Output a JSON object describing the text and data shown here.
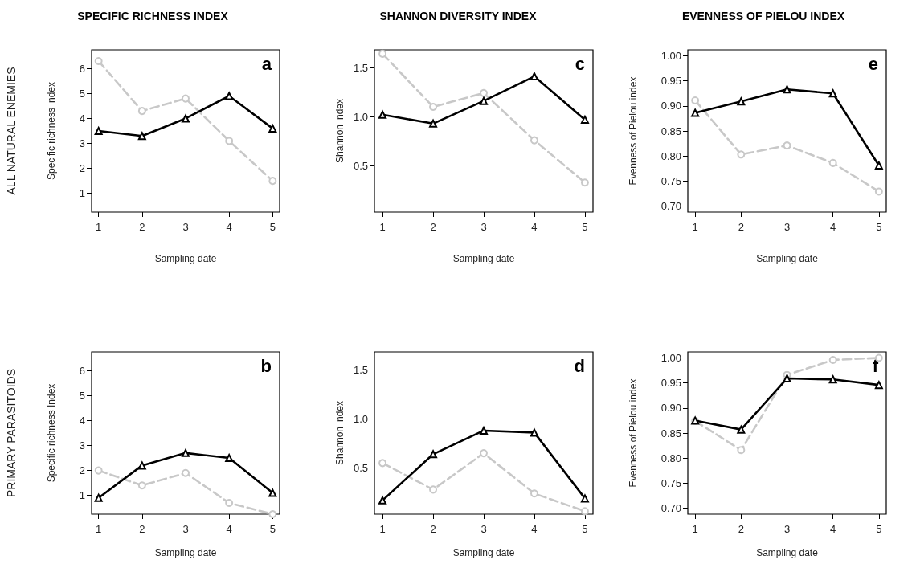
{
  "chart_data": [
    {
      "type": "line",
      "title": "SPECIFIC RICHNESS INDEX",
      "xlabel": "Sampling date",
      "ylabel": "Specific richness index",
      "annotations": [
        "a",
        "ALL NATURAL ENEMIES"
      ],
      "x": [
        1,
        2,
        3,
        4,
        5
      ],
      "xlim": [
        0.84,
        5.16
      ],
      "xticks": [
        1,
        2,
        3,
        4,
        5
      ],
      "ylim": [
        0.25,
        6.75
      ],
      "yticks": [
        1,
        2,
        3,
        4,
        5,
        6
      ],
      "grid": false,
      "series": [
        {
          "color": "#c8c8c8",
          "marker": "circle",
          "line_style": "dashed",
          "values": [
            6.3,
            4.3,
            4.8,
            3.1,
            1.5
          ]
        },
        {
          "color": "#000000",
          "marker": "triangle",
          "line_style": "solid",
          "values": [
            3.5,
            3.3,
            4.0,
            4.9,
            3.6
          ]
        }
      ]
    },
    {
      "type": "line",
      "title": "SHANNON DIVERSITY INDEX",
      "xlabel": "Sampling date",
      "ylabel": "Shannon index",
      "annotations": [
        "c"
      ],
      "x": [
        1,
        2,
        3,
        4,
        5
      ],
      "xlim": [
        0.84,
        5.16
      ],
      "xticks": [
        1,
        2,
        3,
        4,
        5
      ],
      "ylim": [
        0.03,
        1.68
      ],
      "yticks": [
        0.5,
        {
          "value": 1.0,
          "label": "1.0"
        },
        1.5
      ],
      "grid": false,
      "series": [
        {
          "color": "#c8c8c8",
          "marker": "circle",
          "line_style": "dashed",
          "values": [
            1.64,
            1.1,
            1.24,
            0.76,
            0.33
          ]
        },
        {
          "color": "#000000",
          "marker": "triangle",
          "line_style": "solid",
          "values": [
            1.02,
            0.93,
            1.16,
            1.41,
            0.97
          ]
        }
      ]
    },
    {
      "type": "line",
      "title": "EVENNESS OF PIELOU INDEX",
      "xlabel": "Sampling date",
      "ylabel": "Evenness of Pielou index",
      "annotations": [
        "e"
      ],
      "x": [
        1,
        2,
        3,
        4,
        5
      ],
      "xlim": [
        0.84,
        5.16
      ],
      "xticks": [
        1,
        2,
        3,
        4,
        5
      ],
      "ylim": [
        0.688,
        1.012
      ],
      "yticks": [
        {
          "value": 0.7,
          "label": "0.70"
        },
        0.75,
        {
          "value": 0.8,
          "label": "0.80"
        },
        0.85,
        {
          "value": 0.9,
          "label": "0.90"
        },
        0.95,
        {
          "value": 1.0,
          "label": "1.00"
        }
      ],
      "grid": false,
      "series": [
        {
          "color": "#c8c8c8",
          "marker": "circle",
          "line_style": "dashed",
          "values": [
            0.911,
            0.803,
            0.821,
            0.786,
            0.729
          ]
        },
        {
          "color": "#000000",
          "marker": "triangle",
          "line_style": "solid",
          "values": [
            0.886,
            0.909,
            0.933,
            0.925,
            0.781
          ]
        }
      ]
    },
    {
      "type": "line",
      "xlabel": "Sampling date",
      "ylabel": "Specific richness Index",
      "annotations": [
        "b",
        "PRIMARY PARASITOIDS"
      ],
      "x": [
        1,
        2,
        3,
        4,
        5
      ],
      "xlim": [
        0.84,
        5.16
      ],
      "xticks": [
        1,
        2,
        3,
        4,
        5
      ],
      "ylim": [
        0.25,
        6.75
      ],
      "yticks": [
        1,
        2,
        3,
        4,
        5,
        6
      ],
      "grid": false,
      "series": [
        {
          "color": "#c8c8c8",
          "marker": "circle",
          "line_style": "dashed",
          "values": [
            2.0,
            1.4,
            1.9,
            0.7,
            0.25
          ]
        },
        {
          "color": "#000000",
          "marker": "triangle",
          "line_style": "solid",
          "values": [
            0.9,
            2.2,
            2.7,
            2.5,
            1.1
          ]
        }
      ]
    },
    {
      "type": "line",
      "xlabel": "Sampling date",
      "ylabel": "Shannon index",
      "annotations": [
        "d"
      ],
      "x": [
        1,
        2,
        3,
        4,
        5
      ],
      "xlim": [
        0.84,
        5.16
      ],
      "xticks": [
        1,
        2,
        3,
        4,
        5
      ],
      "ylim": [
        0.03,
        1.68
      ],
      "yticks": [
        0.5,
        {
          "value": 1.0,
          "label": "1.0"
        },
        1.5
      ],
      "grid": false,
      "series": [
        {
          "color": "#c8c8c8",
          "marker": "circle",
          "line_style": "dashed",
          "values": [
            0.55,
            0.28,
            0.65,
            0.24,
            0.06
          ]
        },
        {
          "color": "#000000",
          "marker": "triangle",
          "line_style": "solid",
          "values": [
            0.17,
            0.64,
            0.88,
            0.86,
            0.19
          ]
        }
      ]
    },
    {
      "type": "line",
      "xlabel": "Sampling date",
      "ylabel": "Evenness of Pielou index",
      "annotations": [
        "f"
      ],
      "x": [
        1,
        2,
        3,
        4,
        5
      ],
      "xlim": [
        0.84,
        5.16
      ],
      "xticks": [
        1,
        2,
        3,
        4,
        5
      ],
      "ylim": [
        0.688,
        1.012
      ],
      "yticks": [
        {
          "value": 0.7,
          "label": "0.70"
        },
        0.75,
        {
          "value": 0.8,
          "label": "0.80"
        },
        0.85,
        {
          "value": 0.9,
          "label": "0.90"
        },
        0.95,
        {
          "value": 1.0,
          "label": "1.00"
        }
      ],
      "grid": false,
      "series": [
        {
          "color": "#c8c8c8",
          "marker": "circle",
          "line_style": "dashed",
          "values": [
            0.874,
            0.816,
            0.966,
            0.996,
            1.0
          ]
        },
        {
          "color": "#000000",
          "marker": "triangle",
          "line_style": "solid",
          "values": [
            0.875,
            0.857,
            0.959,
            0.957,
            0.946
          ]
        }
      ]
    }
  ]
}
